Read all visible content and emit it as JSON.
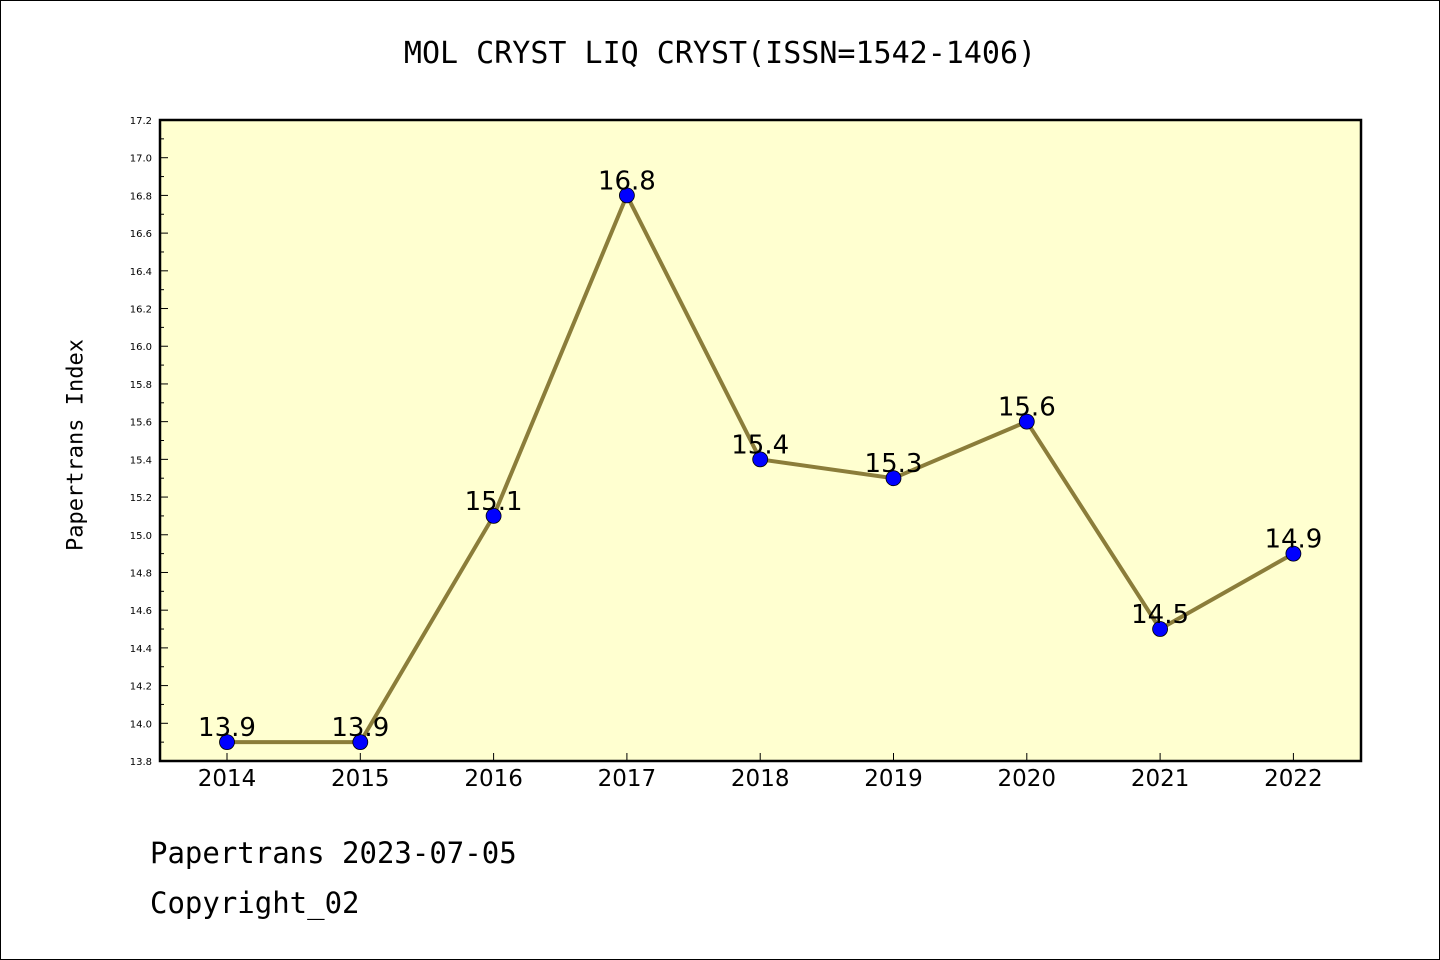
{
  "chart_data": {
    "type": "line",
    "title": "MOL CRYST LIQ CRYST(ISSN=1542-1406)",
    "xlabel": "",
    "ylabel": "Papertrans Index",
    "categories": [
      "2014",
      "2015",
      "2016",
      "2017",
      "2018",
      "2019",
      "2020",
      "2021",
      "2022"
    ],
    "series": [
      {
        "values": [
          13.9,
          13.9,
          15.1,
          16.8,
          15.4,
          15.3,
          15.6,
          14.5,
          14.9
        ],
        "labels": [
          "13.9",
          "13.9",
          "15.1",
          "16.8",
          "15.4",
          "15.3",
          "15.6",
          "14.5",
          "14.9"
        ]
      }
    ],
    "ylim": [
      13.8,
      17.2
    ],
    "yticks": [
      "13.8",
      "14.0",
      "14.2",
      "14.4",
      "14.6",
      "14.8",
      "15.0",
      "15.2",
      "15.4",
      "15.6",
      "15.8",
      "16.0",
      "16.2",
      "16.4",
      "16.6",
      "16.8",
      "17.0",
      "17.2"
    ],
    "grid": false,
    "colors": {
      "plot_background": "#ffffd0",
      "line": "#8b7d3a",
      "marker": "#0000ff"
    }
  },
  "footer": {
    "line1": "Papertrans 2023-07-05",
    "line2": "Copyright_02"
  }
}
